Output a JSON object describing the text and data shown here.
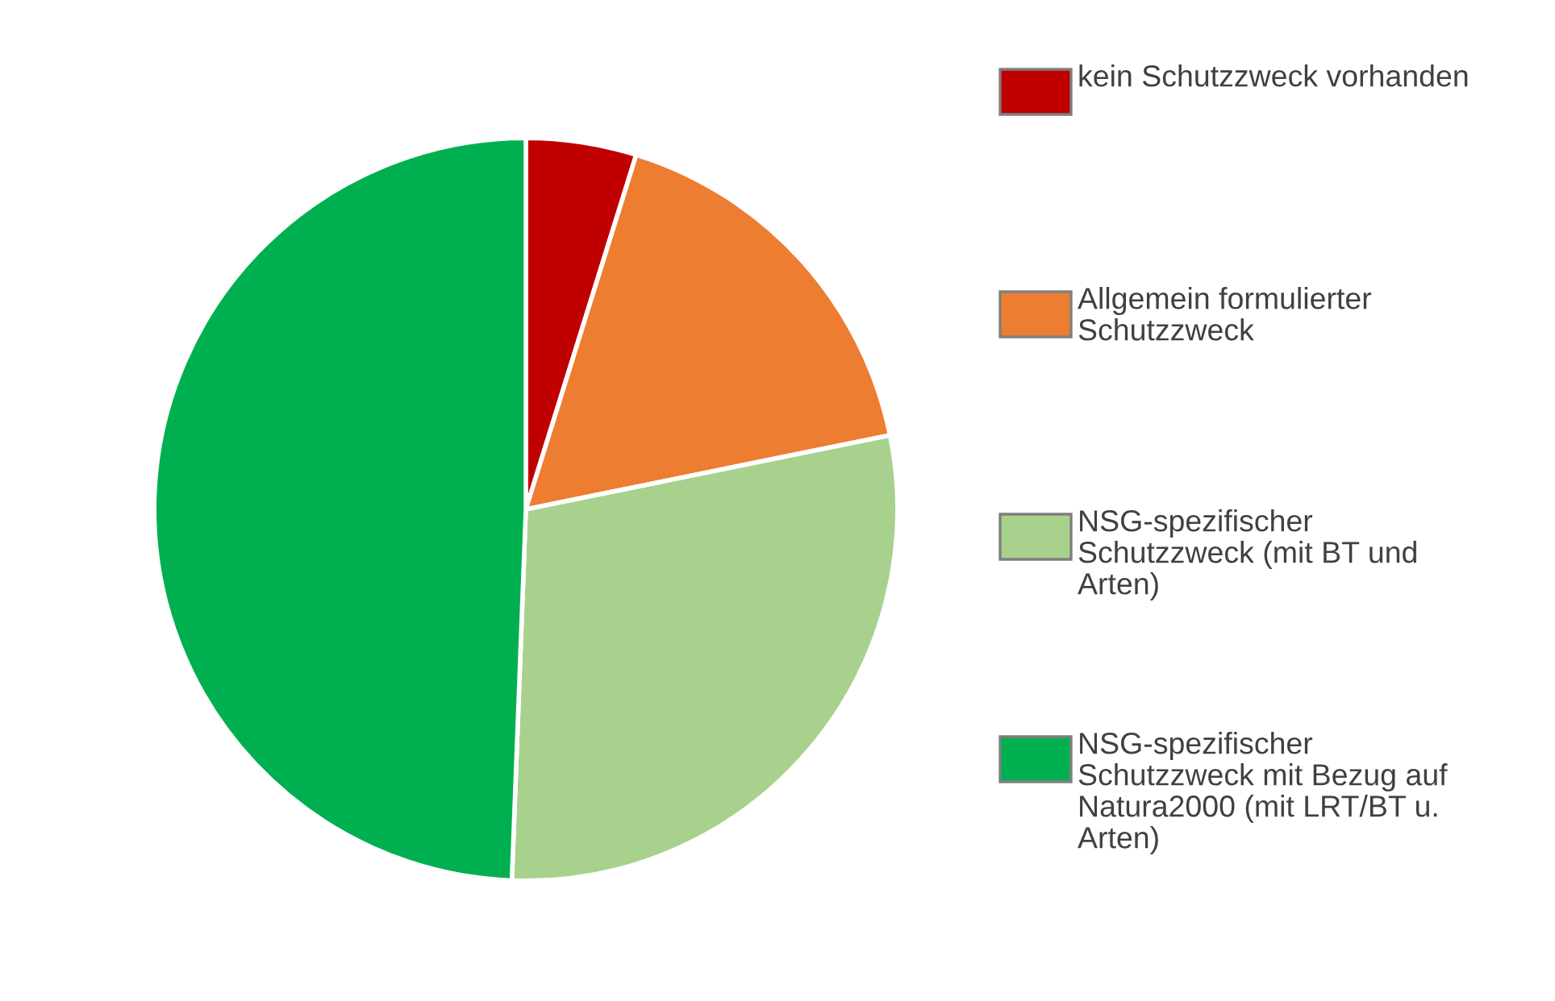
{
  "chart_data": {
    "type": "pie",
    "categories": [
      "kein Schutzzweck vorhanden",
      "Allgemein formulierter\nSchutzzweck",
      "NSG-spezifischer\nSchutzzweck (mit BT und\nArten)",
      "NSG-spezifischer\nSchutzzweck mit Bezug auf\nNatura2000 (mit LRT/BT u.\nArten)"
    ],
    "values": [
      4.8,
      17,
      28.8,
      49.4
    ],
    "colors": [
      "#c00000",
      "#ed7d31",
      "#a9d18e",
      "#00b050"
    ],
    "legend": "right"
  }
}
